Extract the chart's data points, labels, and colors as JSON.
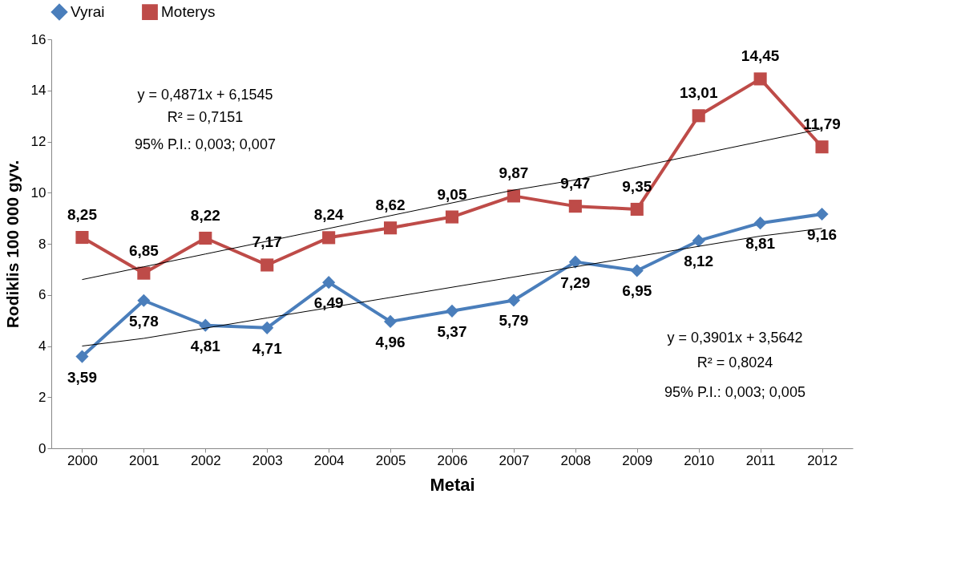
{
  "chart_data": {
    "type": "line",
    "xlabel": "Metai",
    "ylabel": "Rodiklis  100 000 gyv.",
    "categories": [
      "2000",
      "2001",
      "2002",
      "2003",
      "2004",
      "2005",
      "2006",
      "2007",
      "2008",
      "2009",
      "2010",
      "2011",
      "2012"
    ],
    "series": [
      {
        "name": "Vyrai",
        "color": "#4a7ebb",
        "marker": "diamond",
        "values": [
          3.59,
          5.78,
          4.81,
          4.71,
          6.49,
          4.96,
          5.37,
          5.79,
          7.29,
          6.95,
          8.12,
          8.81,
          9.16
        ],
        "value_labels": [
          "3,59",
          "5,78",
          "4,81",
          "4,71",
          "6,49",
          "4,96",
          "5,37",
          "5,79",
          "7,29",
          "6,95",
          "8,12",
          "8,81",
          "9,16"
        ]
      },
      {
        "name": "Moterys",
        "color": "#be4b48",
        "marker": "square",
        "values": [
          8.25,
          6.85,
          8.22,
          7.17,
          8.24,
          8.62,
          9.05,
          9.87,
          9.47,
          9.35,
          13.01,
          14.45,
          11.79
        ],
        "value_labels": [
          "8,25",
          "6,85",
          "8,22",
          "7,17",
          "8,24",
          "8,62",
          "9,05",
          "9,87",
          "9,47",
          "9,35",
          "13,01",
          "14,45",
          "11,79"
        ]
      },
      {
        "type": "line",
        "color": "#000000",
        "marker": "none",
        "values": [
          4.0,
          4.3,
          4.7,
          5.1,
          5.5,
          5.9,
          6.3,
          6.7,
          7.1,
          7.5,
          7.9,
          8.3,
          8.6
        ]
      },
      {
        "type": "line",
        "color": "#000000",
        "marker": "none",
        "values": [
          6.6,
          7.1,
          7.6,
          8.1,
          8.6,
          9.1,
          9.6,
          10.1,
          10.5,
          11.0,
          11.5,
          12.0,
          12.5
        ]
      }
    ],
    "annotations": [
      "y = 0,4871x + 6,1545",
      "R² = 0,7151",
      "95% P.I.: 0,003; 0,007",
      "y = 0,3901x + 3,5642",
      "R² = 0,8024",
      "95% P.I.: 0,003; 0,005"
    ],
    "ylim": [
      0,
      16
    ],
    "yticks": [
      0,
      2,
      4,
      6,
      8,
      10,
      12,
      14,
      16
    ],
    "grid": false,
    "legend": "top"
  }
}
